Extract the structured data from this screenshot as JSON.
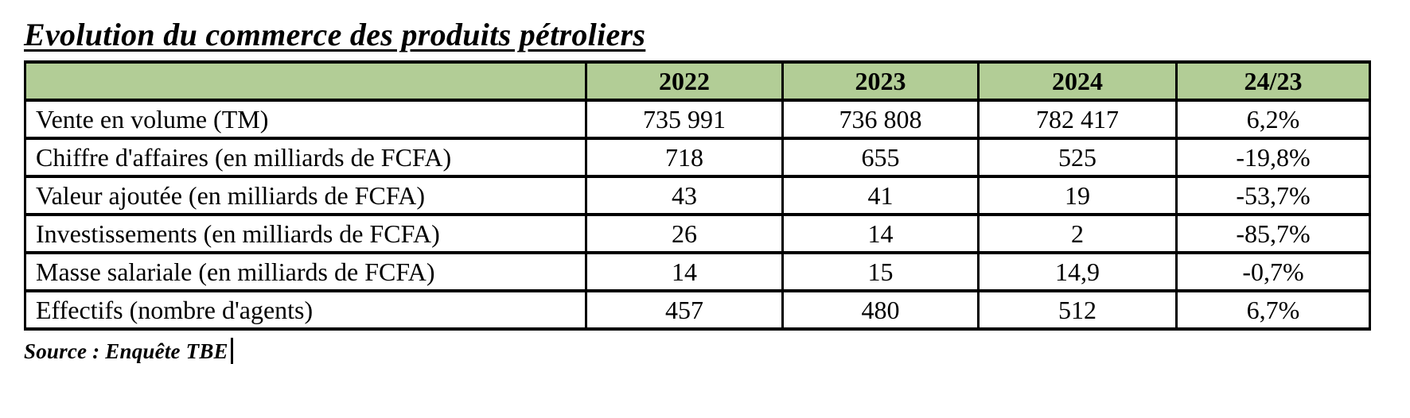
{
  "page": {
    "title": "Evolution du commerce des produits pétroliers",
    "source_note": "Source : Enquête TBE"
  },
  "colors": {
    "header_bg": "#B2CD96",
    "border": "#000000",
    "text": "#000000",
    "background": "#FFFFFF"
  },
  "table": {
    "header": [
      "",
      "2022",
      "2023",
      "2024",
      "24/23"
    ],
    "rows": [
      {
        "label": "Vente en volume (TM)",
        "values": [
          "735 991",
          "736 808",
          "782 417",
          "6,2%"
        ]
      },
      {
        "label": "Chiffre d'affaires (en milliards de FCFA)",
        "values": [
          "718",
          "655",
          "525",
          "-19,8%"
        ]
      },
      {
        "label": "Valeur ajoutée (en milliards de FCFA)",
        "values": [
          "43",
          "41",
          "19",
          "-53,7%"
        ]
      },
      {
        "label": "Investissements (en milliards de FCFA)",
        "values": [
          "26",
          "14",
          "2",
          "-85,7%"
        ]
      },
      {
        "label": "Masse salariale (en milliards de FCFA)",
        "values": [
          "14",
          "15",
          "14,9",
          "-0,7%"
        ]
      },
      {
        "label": "Effectifs (nombre d'agents)",
        "values": [
          "457",
          "480",
          "512",
          "6,7%"
        ]
      }
    ]
  }
}
